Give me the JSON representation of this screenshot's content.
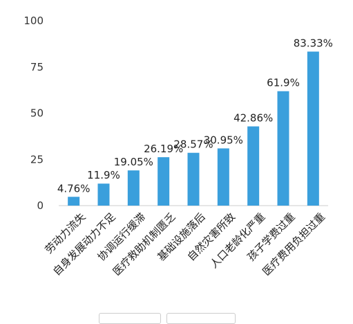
{
  "chart_data": {
    "type": "bar",
    "categories": [
      "劳动力流失",
      "自身发展动力不足",
      "协调运行缓滞",
      "医疗救助机制匮乏",
      "基础设施落后",
      "自然灾害所致",
      "人口老龄化严重",
      "孩子学费过重",
      "医疗费用负担过重"
    ],
    "values": [
      4.76,
      11.9,
      19.05,
      26.19,
      28.57,
      30.95,
      42.86,
      61.9,
      83.33
    ],
    "data_labels": [
      "4.76%",
      "11.9%",
      "19.05%",
      "26.19%",
      "28.57%",
      "30.95%",
      "42.86%",
      "61.9%",
      "83.33%"
    ],
    "yticks": [
      "0",
      "25",
      "50",
      "75",
      "100"
    ],
    "ylim": [
      0,
      100
    ],
    "bar_color": "#3a9fdc",
    "grid": false
  }
}
